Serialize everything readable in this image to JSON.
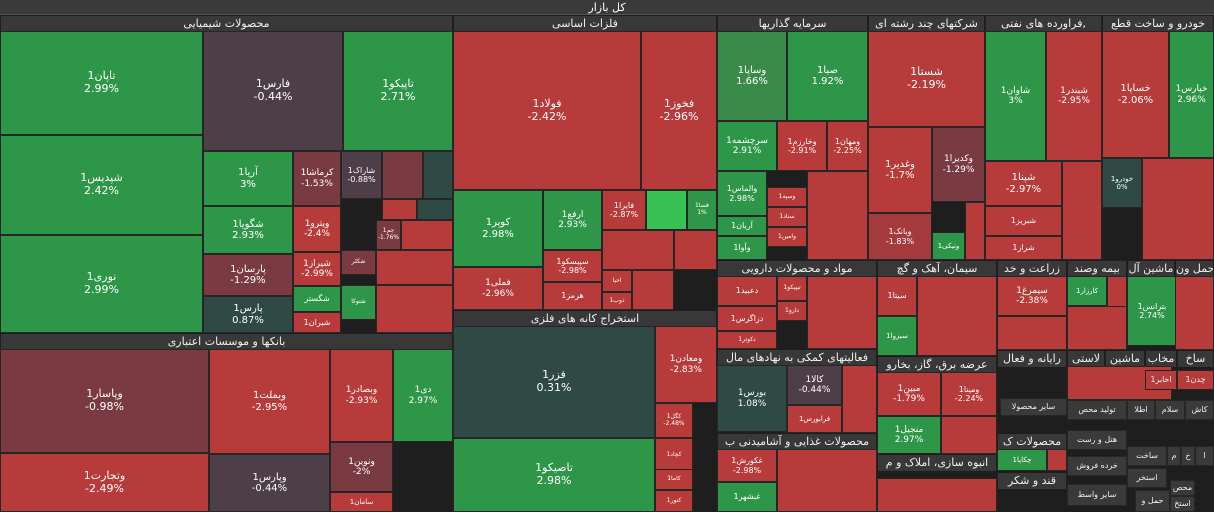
{
  "colors": {
    "green_strong": "#2e9648",
    "green_mid": "#3a8a4a",
    "green_bright": "#39c253",
    "red_strong": "#b83b3b",
    "red_mid": "#a53a3d",
    "red_dark": "#7a3a42",
    "neutral": "#4e3e48",
    "teal": "#2f4a45"
  },
  "title": "کل بازار",
  "sectors": {
    "chem": "محصولات شیمیایی",
    "metals": "فلزات اساسی",
    "invest": "سرمایه گذاریها",
    "multi": "شرکتهای چند رشته ای",
    "oil": "فراورده های نفتی,",
    "auto": "خودرو و ساخت قطع",
    "banks": "بانکها و موسسات اعتباری",
    "mining": "استخراج کانه های فلزی",
    "pharma": "مواد و محصولات دارویی",
    "cement": "سیمان، آهک و گچ",
    "agri": "زراعت و خد",
    "insurance": "بیمه وصند",
    "machinery": "ماشین آل",
    "transport": "حمل ون",
    "financial": "فعالیتهای کمکی به نهادهای مال",
    "electric": "عرضه برق، گاز، بخارو",
    "computer": "رایانه و فعال",
    "glass": "لاستی",
    "mach2": "ماشین",
    "metalprod": "مخاب",
    "build": "ساخ",
    "food": "محصولات غذایی و آشامیدنی ب",
    "realestate": "انبوه سازی، املاک و م",
    "sugar": "قند و شکر",
    "paper": "محصولات ک"
  },
  "tiles": {
    "tapan": {
      "sym": "تاپان1",
      "chg": "2.99%"
    },
    "fars": {
      "sym": "فارس1",
      "chg": "-0.44%"
    },
    "tapico": {
      "sym": "تاپیکو1",
      "chg": "2.71%"
    },
    "shpdis": {
      "sym": "شپدیس1",
      "chg": "2.42%"
    },
    "arya": {
      "sym": "آریا1",
      "chg": "3%"
    },
    "kermasha": {
      "sym": "کرماشا1",
      "chg": "-1.53%"
    },
    "sharak": {
      "sym": "شاراک1",
      "chg": "-0.88%"
    },
    "shgoya": {
      "sym": "شگویا1",
      "chg": "2.93%"
    },
    "vitro": {
      "sym": "ویترو1",
      "chg": "-2.4%"
    },
    "jam": {
      "sym": "جم1",
      "chg": "-1.76%"
    },
    "nouri": {
      "sym": "نوری1",
      "chg": "2.99%"
    },
    "parsan": {
      "sym": "پارسان1",
      "chg": "-1.29%"
    },
    "shiraz": {
      "sym": "شیراز1",
      "chg": "-2.99%"
    },
    "shkalr": {
      "sym": "شکلر"
    },
    "pars": {
      "sym": "پارس1",
      "chg": "0.87%"
    },
    "shegostar": {
      "sym": "شگستر"
    },
    "shirzan": {
      "sym": "شیران1"
    },
    "shtoka": {
      "sym": "شتوکا"
    },
    "foolad": {
      "sym": "فولاد1",
      "chg": "-2.42%"
    },
    "fkhooz": {
      "sym": "فخوز1",
      "chg": "-2.96%"
    },
    "kopr": {
      "sym": "کوپر1",
      "chg": "2.98%"
    },
    "arfa": {
      "sym": "ارفع1",
      "chg": "2.93%"
    },
    "faira": {
      "sym": "فایرا1",
      "chg": "-2.87%"
    },
    "fsa": {
      "sym": "فسا1",
      "chg": "1%"
    },
    "fmeli": {
      "sym": "فملی1",
      "chg": "-2.96%"
    },
    "sepisco": {
      "sym": "سپیسکو1",
      "chg": "-2.98%"
    },
    "hormoz": {
      "sym": "هرمز1"
    },
    "ahya": {
      "sym": "احیا"
    },
    "zob": {
      "sym": "ذوب1"
    },
    "vesapa": {
      "sym": "وساپا1",
      "chg": "1.66%"
    },
    "saba": {
      "sym": "صبا1",
      "chg": "1.92%"
    },
    "sarchashme": {
      "sym": "سرچشمه1",
      "chg": "2.91%"
    },
    "vkharazm": {
      "sym": "وخارزم1",
      "chg": "-2.91%"
    },
    "vmahan": {
      "sym": "ومهان1",
      "chg": "-2.25%"
    },
    "valmas": {
      "sym": "والماس1",
      "chg": "2.98%"
    },
    "vsapeh": {
      "sym": "وسپه1"
    },
    "arian": {
      "sym": "آریان1"
    },
    "sanad": {
      "sym": "سناد1"
    },
    "vava": {
      "sym": "وآوا1"
    },
    "vamin": {
      "sym": "وامین1"
    },
    "shasta": {
      "sym": "شستا1",
      "chg": "-2.19%"
    },
    "vghadir": {
      "sym": "وغدیر1",
      "chg": "-1.7%"
    },
    "vkadir": {
      "sym": "وکدیرا1",
      "chg": "-1.29%"
    },
    "vbank": {
      "sym": "وبانک1",
      "chg": "-1.83%"
    },
    "vniki": {
      "sym": "ونیکی1"
    },
    "shavan": {
      "sym": "شاوان1",
      "chg": "3%"
    },
    "shbandar": {
      "sym": "شبندر1",
      "chg": "-2.95%"
    },
    "shina": {
      "sym": "شپنا1",
      "chg": "-2.97%"
    },
    "shbriz": {
      "sym": "شبریز1"
    },
    "shraz": {
      "sym": "شراز1"
    },
    "khsapa": {
      "sym": "خساپا1",
      "chg": "-2.06%"
    },
    "khpars": {
      "sym": "خپارس1",
      "chg": "2.96%"
    },
    "khodro": {
      "sym": "خودرو1",
      "chg": "0%"
    },
    "vpasar": {
      "sym": "وپاسار1",
      "chg": "-0.98%"
    },
    "vbmelat": {
      "sym": "وبملت1",
      "chg": "-2.95%"
    },
    "vbsader": {
      "sym": "وبصادر1",
      "chg": "-2.93%"
    },
    "dey": {
      "sym": "دی1",
      "chg": "2.97%"
    },
    "vtejarat": {
      "sym": "وتجارت1",
      "chg": "-2.49%"
    },
    "vpars": {
      "sym": "وپارس1",
      "chg": "-0.44%"
    },
    "vnovin": {
      "sym": "ونوین1",
      "chg": "-2%"
    },
    "saman": {
      "sym": "سامان1"
    },
    "fazr": {
      "sym": "فزر1",
      "chg": "0.31%"
    },
    "vmaaden": {
      "sym": "ومعادن1",
      "chg": "-2.83%"
    },
    "kgol": {
      "sym": "کگل1",
      "chg": "-2.48%"
    },
    "tapico2": {
      "sym": "تاصیکو1",
      "chg": "2.98%"
    },
    "kchad": {
      "sym": "کچاد1"
    },
    "kama": {
      "sym": "کاما1"
    },
    "kenor": {
      "sym": "کنور1"
    },
    "dabid": {
      "sym": "دعبید1"
    },
    "tipico": {
      "sym": "تیپیکو1"
    },
    "dara": {
      "sym": "دارو1"
    },
    "dzagros": {
      "sym": "دزاگرس1"
    },
    "dkosar": {
      "sym": "دکوثر1"
    },
    "sita": {
      "sym": "سیتا1"
    },
    "sbzva": {
      "sym": "سبزوا1"
    },
    "simorgh": {
      "sym": "سیمرغ1",
      "chg": "-2.38%"
    },
    "karzar": {
      "sym": "کارزار1"
    },
    "btrans": {
      "sym": "بترانس1",
      "chg": "2.74%"
    },
    "bors": {
      "sym": "بورس1",
      "chg": "1.08%"
    },
    "kala": {
      "sym": "کالا1",
      "chg": "-0.44%"
    },
    "farabors": {
      "sym": "فرابورس1"
    },
    "mbin": {
      "sym": "مبین1",
      "chg": "-1.79%"
    },
    "vmina": {
      "sym": "ومینا1",
      "chg": "-2.24%"
    },
    "manjil": {
      "sym": "منجیل1",
      "chg": "2.97%"
    },
    "ghkorosh": {
      "sym": "غکورش1",
      "chg": "-2.98%"
    },
    "ghshahr": {
      "sym": "غبشهر1"
    },
    "chakapa": {
      "sym": "چکاپا1"
    }
  },
  "small_labels": {
    "saye": "سایر محصولا",
    "akhaber": "اخابر1",
    "chadan": "چدن1",
    "tolid": "تولید محص",
    "atla": "اطلا",
    "salam": "سلام",
    "kash": "کاش",
    "hotel": "هتل و رست",
    "kharde": "خرده فروش",
    "astekhr": "استخر",
    "saye2": "سایر واسط",
    "haml": "حمل و",
    "mhs": "محص",
    "astekh2": "استخ",
    "sakht": "ساخت",
    "m": "م",
    "kh": "خ",
    "a": "ا"
  }
}
